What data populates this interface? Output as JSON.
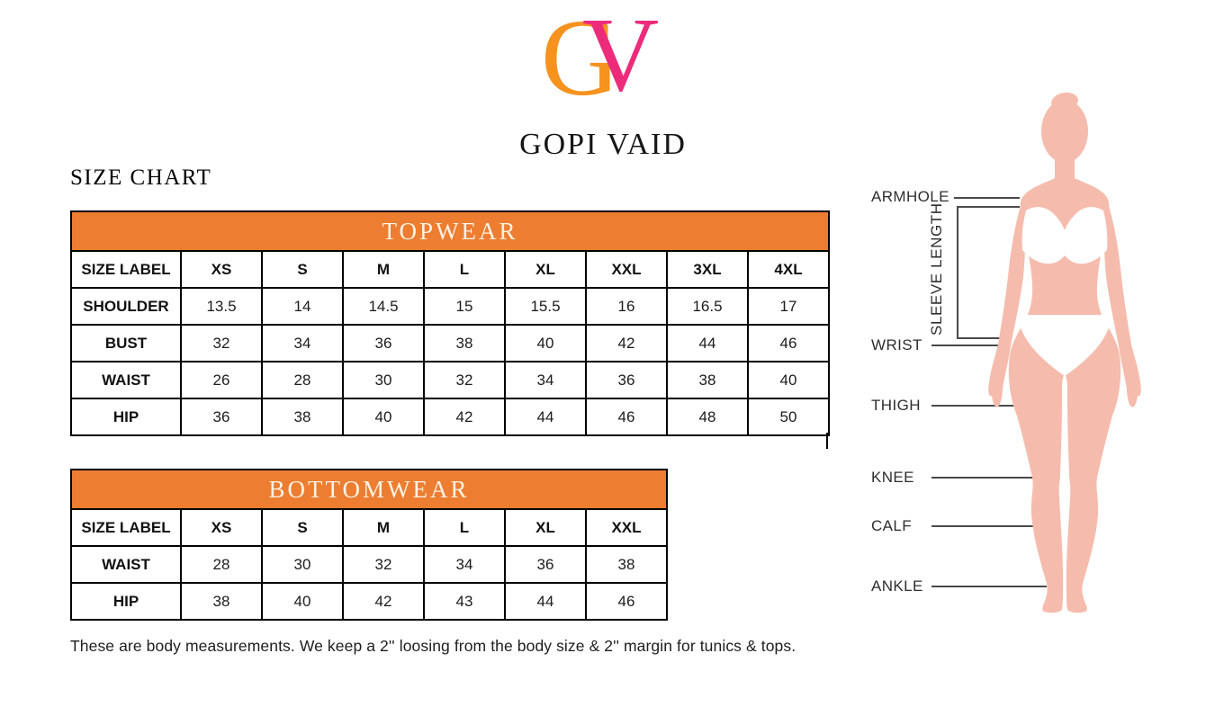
{
  "brand": {
    "logo_g": "G",
    "logo_v": "V",
    "name": "GOPI VAID"
  },
  "page_title": "SIZE CHART",
  "colors": {
    "table_header_orange": "#ED7D31",
    "logo_orange": "#F6921E",
    "logo_pink": "#EC2C7B",
    "banner_text": "#FBF3E4",
    "body_silhouette": "#F5BCAD",
    "underwear_white": "#FFFFFF",
    "table_border": "#000000"
  },
  "topwear": {
    "title": "TOPWEAR",
    "rows": [
      {
        "label": "SIZE LABEL",
        "values": [
          "XS",
          "S",
          "M",
          "L",
          "XL",
          "XXL",
          "3XL",
          "4XL"
        ]
      },
      {
        "label": "SHOULDER",
        "values": [
          "13.5",
          "14",
          "14.5",
          "15",
          "15.5",
          "16",
          "16.5",
          "17"
        ]
      },
      {
        "label": "BUST",
        "values": [
          "32",
          "34",
          "36",
          "38",
          "40",
          "42",
          "44",
          "46"
        ]
      },
      {
        "label": "WAIST",
        "values": [
          "26",
          "28",
          "30",
          "32",
          "34",
          "36",
          "38",
          "40"
        ]
      },
      {
        "label": "HIP",
        "values": [
          "36",
          "38",
          "40",
          "42",
          "44",
          "46",
          "48",
          "50"
        ]
      }
    ]
  },
  "bottomwear": {
    "title": "BOTTOMWEAR",
    "rows": [
      {
        "label": "SIZE LABEL",
        "values": [
          "XS",
          "S",
          "M",
          "L",
          "XL",
          "XXL"
        ]
      },
      {
        "label": "WAIST",
        "values": [
          "28",
          "30",
          "32",
          "34",
          "36",
          "38"
        ]
      },
      {
        "label": "HIP",
        "values": [
          "38",
          "40",
          "42",
          "43",
          "44",
          "46"
        ]
      }
    ]
  },
  "note": "These are body measurements. We keep a 2'' loosing from the body size & 2'' margin for tunics & tops.",
  "figure_labels": {
    "armhole": "ARMHOLE",
    "sleeve_length": "SLEEVE LENGTH",
    "wrist": "WRIST",
    "thigh": "THIGH",
    "knee": "KNEE",
    "calf": "CALF",
    "ankle": "ANKLE"
  }
}
